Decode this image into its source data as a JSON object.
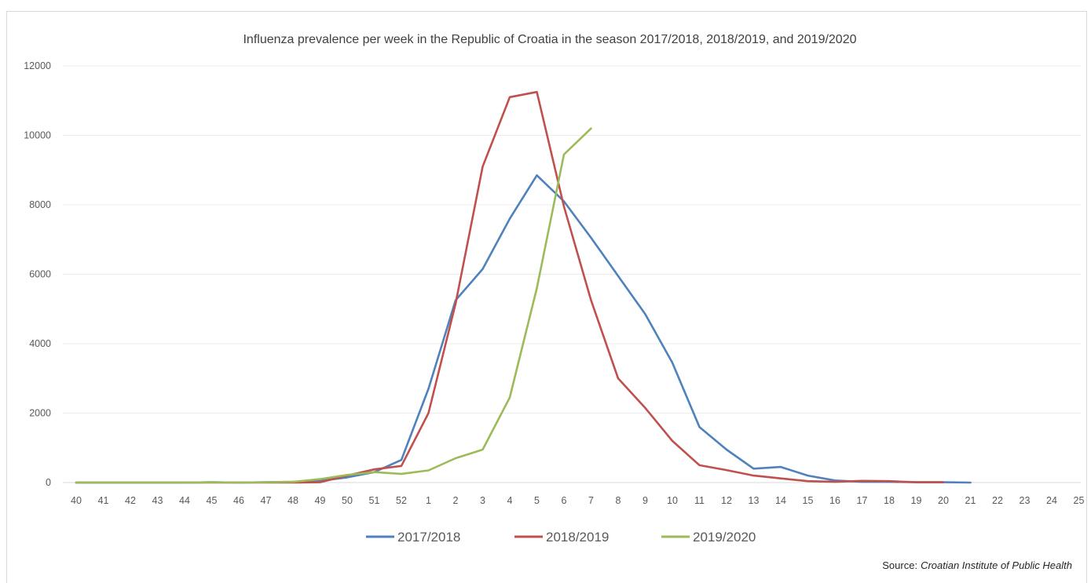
{
  "chart_data": {
    "type": "line",
    "title": "Influenza prevalence per week in the Republic of Croatia in the season 2017/2018, 2018/2019, and 2019/2020",
    "xlabel": "",
    "ylabel": "",
    "ylim": [
      0,
      12000
    ],
    "yticks": [
      "0",
      "2000",
      "4000",
      "6000",
      "8000",
      "10000",
      "12000"
    ],
    "categories": [
      "40",
      "41",
      "42",
      "43",
      "44",
      "45",
      "46",
      "47",
      "48",
      "49",
      "50",
      "51",
      "52",
      "1",
      "2",
      "3",
      "4",
      "5",
      "6",
      "7",
      "8",
      "9",
      "10",
      "11",
      "12",
      "13",
      "14",
      "15",
      "16",
      "17",
      "18",
      "19",
      "20",
      "21",
      "22",
      "23",
      "24",
      "25"
    ],
    "grid": true,
    "legend_position": "bottom",
    "series": [
      {
        "name": "2017/2018",
        "color": "#4f81bd",
        "values": [
          0,
          0,
          0,
          0,
          0,
          10,
          0,
          10,
          20,
          50,
          150,
          300,
          650,
          2700,
          5250,
          6150,
          7600,
          8850,
          8100,
          7050,
          5950,
          4850,
          3450,
          1600,
          950,
          400,
          450,
          200,
          60,
          20,
          20,
          10,
          10,
          0,
          null,
          null,
          null,
          null
        ]
      },
      {
        "name": "2018/2019",
        "color": "#c0504d",
        "values": [
          0,
          0,
          0,
          0,
          0,
          0,
          0,
          0,
          0,
          10,
          200,
          380,
          480,
          2000,
          5150,
          9100,
          11100,
          11250,
          7950,
          5250,
          3000,
          2150,
          1200,
          500,
          360,
          200,
          120,
          40,
          20,
          50,
          40,
          10,
          10,
          null,
          null,
          null,
          null,
          null
        ]
      },
      {
        "name": "2019/2020",
        "color": "#9bbb59",
        "values": [
          0,
          0,
          0,
          0,
          0,
          10,
          0,
          10,
          20,
          100,
          220,
          300,
          250,
          350,
          700,
          950,
          2450,
          5600,
          9450,
          10200,
          null,
          null,
          null,
          null,
          null,
          null,
          null,
          null,
          null,
          null,
          null,
          null,
          null,
          null,
          null,
          null,
          null,
          null
        ]
      }
    ],
    "source_label": "Source:",
    "source_name": "Croatian Institute of Public Health"
  }
}
